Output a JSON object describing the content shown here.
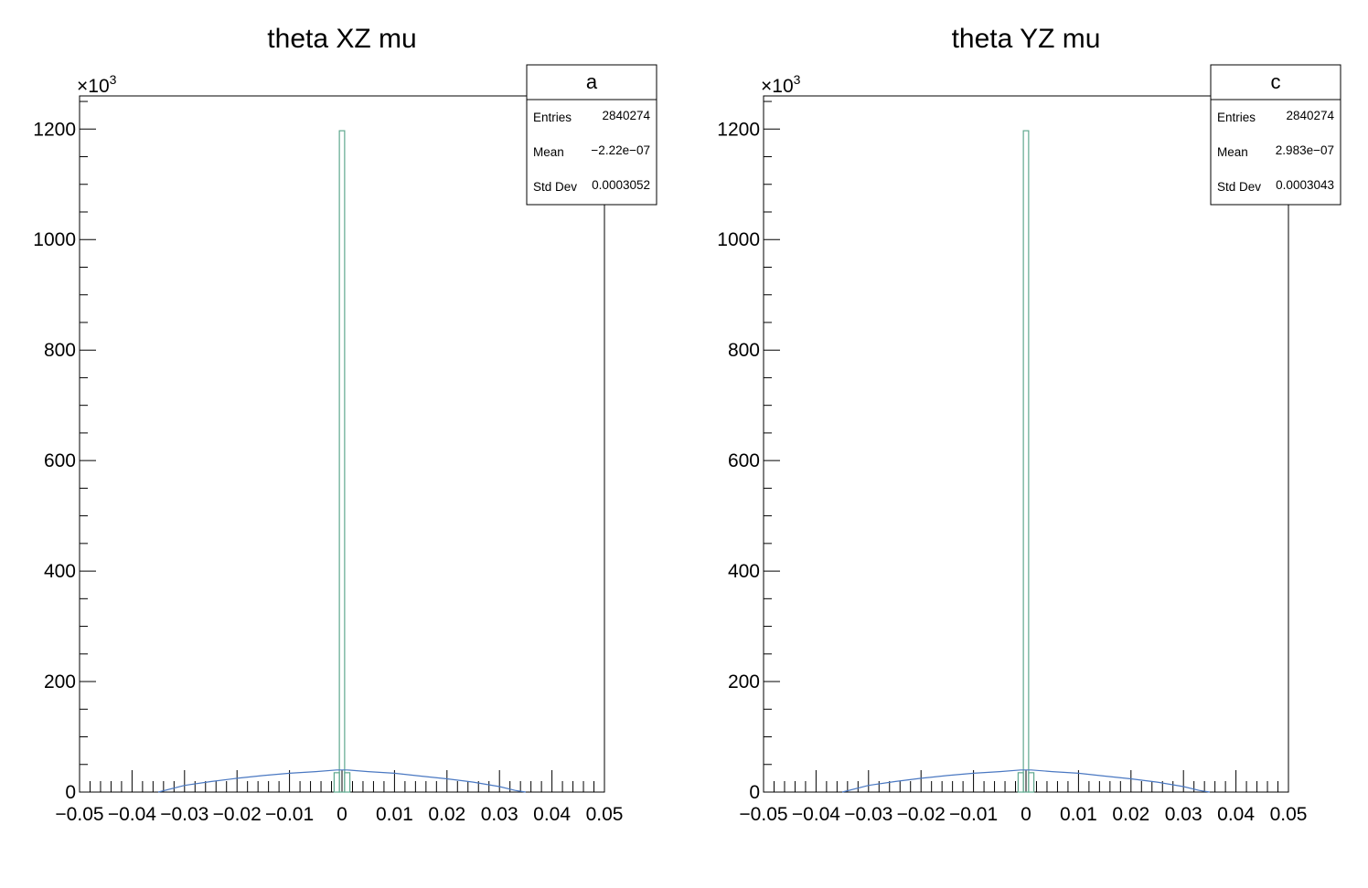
{
  "chart_data": [
    {
      "type": "histogram",
      "title": "theta XZ mu",
      "xlabel": "",
      "ylabel": "",
      "xlim": [
        -0.05,
        0.05
      ],
      "ylim": [
        0,
        1260
      ],
      "y_multiplier": "×10",
      "y_multiplier_exp": "3",
      "x_tick_labels": [
        "−0.05",
        "−0.04",
        "−0.03",
        "−0.02",
        "−0.01",
        "0",
        "0.01",
        "0.02",
        "0.03",
        "0.04",
        "0.05"
      ],
      "y_tick_labels": [
        "0",
        "200",
        "400",
        "600",
        "800",
        "1000",
        "1200"
      ],
      "stats": {
        "name": "a",
        "rows": [
          {
            "label": "Entries",
            "value": "2840274"
          },
          {
            "label": "Mean",
            "value": "−2.22e−07"
          },
          {
            "label": "Std Dev",
            "value": "0.0003052"
          }
        ]
      },
      "series": [
        {
          "color": "#5fa88e",
          "bins": [
            {
              "x0": -0.0015,
              "x1": -0.0005,
              "y": 35
            },
            {
              "x0": -0.0005,
              "x1": 0.0005,
              "y": 1197
            },
            {
              "x0": 0.0005,
              "x1": 0.0015,
              "y": 35
            }
          ]
        },
        {
          "color": "#4a78c2",
          "points": [
            [
              -0.035,
              0
            ],
            [
              -0.03,
              12
            ],
            [
              -0.025,
              19
            ],
            [
              -0.02,
              25
            ],
            [
              -0.015,
              30
            ],
            [
              -0.01,
              34
            ],
            [
              -0.005,
              37
            ],
            [
              -0.001,
              40
            ],
            [
              0.001,
              40
            ],
            [
              0.005,
              37
            ],
            [
              0.01,
              34
            ],
            [
              0.015,
              29
            ],
            [
              0.02,
              24
            ],
            [
              0.025,
              18
            ],
            [
              0.03,
              10
            ],
            [
              0.033,
              3
            ],
            [
              0.035,
              0
            ]
          ]
        }
      ]
    },
    {
      "type": "histogram",
      "title": "theta YZ mu",
      "xlabel": "",
      "ylabel": "",
      "xlim": [
        -0.05,
        0.05
      ],
      "ylim": [
        0,
        1260
      ],
      "y_multiplier": "×10",
      "y_multiplier_exp": "3",
      "x_tick_labels": [
        "−0.05",
        "−0.04",
        "−0.03",
        "−0.02",
        "−0.01",
        "0",
        "0.01",
        "0.02",
        "0.03",
        "0.04",
        "0.05"
      ],
      "y_tick_labels": [
        "0",
        "200",
        "400",
        "600",
        "800",
        "1000",
        "1200"
      ],
      "stats": {
        "name": "c",
        "rows": [
          {
            "label": "Entries",
            "value": "2840274"
          },
          {
            "label": "Mean",
            "value": "2.983e−07"
          },
          {
            "label": "Std Dev",
            "value": "0.0003043"
          }
        ]
      },
      "series": [
        {
          "color": "#5fa88e",
          "bins": [
            {
              "x0": -0.0015,
              "x1": -0.0005,
              "y": 35
            },
            {
              "x0": -0.0005,
              "x1": 0.0005,
              "y": 1197
            },
            {
              "x0": 0.0005,
              "x1": 0.0015,
              "y": 35
            }
          ]
        },
        {
          "color": "#4a78c2",
          "points": [
            [
              -0.035,
              0
            ],
            [
              -0.03,
              12
            ],
            [
              -0.025,
              19
            ],
            [
              -0.02,
              25
            ],
            [
              -0.015,
              30
            ],
            [
              -0.01,
              34
            ],
            [
              -0.005,
              37
            ],
            [
              -0.001,
              40
            ],
            [
              0.001,
              40
            ],
            [
              0.005,
              37
            ],
            [
              0.01,
              34
            ],
            [
              0.015,
              29
            ],
            [
              0.02,
              24
            ],
            [
              0.025,
              18
            ],
            [
              0.03,
              10
            ],
            [
              0.033,
              3
            ],
            [
              0.035,
              0
            ]
          ]
        }
      ]
    }
  ]
}
